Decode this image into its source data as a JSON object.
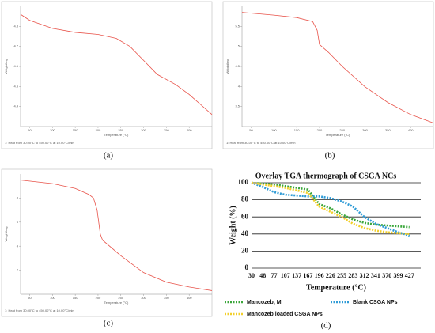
{
  "chart_data": [
    {
      "type": "line",
      "panel_label": "(a)",
      "x_label": "Temperature (°C)",
      "y_label": "Weight/mg",
      "footer": "1: Heat from 30.00°C to 450.00°C at 10.00°C/min",
      "color": "#e8534a",
      "x": [
        30,
        50,
        100,
        150,
        200,
        240,
        270,
        300,
        330,
        370,
        400,
        450
      ],
      "values": [
        4.86,
        4.83,
        4.79,
        4.77,
        4.76,
        4.74,
        4.7,
        4.63,
        4.56,
        4.51,
        4.46,
        4.36
      ],
      "xlim": [
        30,
        450
      ],
      "xticks": [
        50,
        100,
        150,
        200,
        250,
        300,
        350,
        400
      ],
      "ylim": [
        4.3,
        4.9
      ],
      "yticks": [
        4.4,
        4.5,
        4.6,
        4.7,
        4.8
      ]
    },
    {
      "type": "line",
      "panel_label": "(b)",
      "x_label": "Temperature (°C)",
      "y_label": "Weight/mg",
      "footer": "1: Heat from 30.00°C to 450.00°C at 10.00°C/min",
      "color": "#e8534a",
      "x": [
        30,
        100,
        150,
        185,
        195,
        200,
        220,
        250,
        300,
        350,
        400,
        450
      ],
      "values": [
        5.85,
        5.78,
        5.72,
        5.62,
        5.4,
        5.05,
        4.85,
        4.5,
        3.99,
        3.6,
        3.3,
        3.09
      ],
      "xlim": [
        30,
        450
      ],
      "xticks": [
        50,
        100,
        150,
        200,
        250,
        300,
        350,
        400
      ],
      "ylim": [
        3.0,
        6.0
      ],
      "yticks": [
        3.5,
        4,
        4.5,
        5,
        5.5
      ]
    },
    {
      "type": "line",
      "panel_label": "(c)",
      "x_label": "Temperature (°C)",
      "y_label": "Weight/mg",
      "footer": "1: Heat from 30.00°C to 450.00°C at 10.00°C/min",
      "color": "#e8534a",
      "x": [
        30,
        100,
        150,
        180,
        190,
        198,
        205,
        210,
        250,
        300,
        350,
        400,
        450
      ],
      "values": [
        9.5,
        9.2,
        8.8,
        8.3,
        8.0,
        7.0,
        5.0,
        4.5,
        3.2,
        1.8,
        1.0,
        0.6,
        0.3
      ],
      "xlim": [
        30,
        450
      ],
      "xticks": [
        50,
        100,
        150,
        200,
        250,
        300,
        350,
        400
      ],
      "ylim": [
        0,
        10
      ],
      "yticks": [
        2,
        4,
        6,
        8
      ]
    },
    {
      "type": "dotted_line",
      "panel_label": "(d)",
      "title": "Overlay TGA thermograph of CSGA NCs",
      "x_label": "Temperature (°C)",
      "y_label": "Weight (%)",
      "categories": [
        "30",
        "48",
        "77",
        "107",
        "137",
        "167",
        "196",
        "226",
        "255",
        "283",
        "312",
        "341",
        "370",
        "399",
        "427"
      ],
      "series": [
        {
          "name": "Mancozeb, M",
          "color": "#3aa63a",
          "values": [
            100,
            99,
            98,
            96,
            94,
            92,
            75,
            70,
            63,
            57,
            53,
            51,
            50,
            49,
            48
          ]
        },
        {
          "name": "Blank CSGA NPs",
          "color": "#2f9bd6",
          "values": [
            100,
            95,
            89,
            86,
            85,
            84,
            84,
            82,
            78,
            72,
            60,
            52,
            47,
            42,
            38
          ]
        },
        {
          "name": "Mancozeb loaded CSGA NPs",
          "color": "#f2cf2a",
          "values": [
            100,
            98,
            96,
            94,
            91,
            88,
            72,
            66,
            60,
            52,
            47,
            44,
            42,
            41,
            40
          ]
        }
      ],
      "ylim": [
        0,
        100
      ],
      "yticks": [
        0,
        20,
        40,
        60,
        80,
        100
      ],
      "grid": true
    }
  ]
}
